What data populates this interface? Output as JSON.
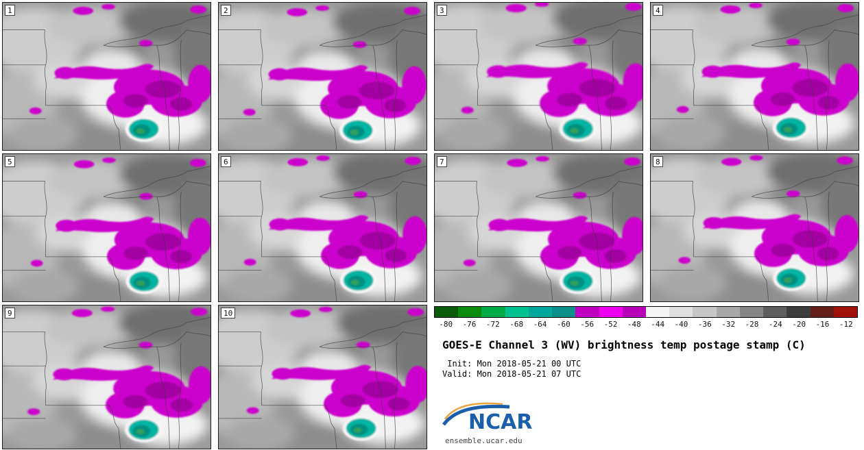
{
  "panels": [
    {
      "id": "1"
    },
    {
      "id": "2"
    },
    {
      "id": "3"
    },
    {
      "id": "4"
    },
    {
      "id": "5"
    },
    {
      "id": "6"
    },
    {
      "id": "7"
    },
    {
      "id": "8"
    },
    {
      "id": "9"
    },
    {
      "id": "10"
    }
  ],
  "colorbar": {
    "ticks": [
      "-80",
      "-76",
      "-72",
      "-68",
      "-64",
      "-60",
      "-56",
      "-52",
      "-48",
      "-44",
      "-40",
      "-36",
      "-32",
      "-28",
      "-24",
      "-20",
      "-16",
      "-12"
    ],
    "colors": [
      "#0a5c0a",
      "#0c8c0c",
      "#00aa44",
      "#00c290",
      "#00a89c",
      "#0d8f8a",
      "#c000c0",
      "#ee00ee",
      "#b800b8",
      "#f4f4f4",
      "#e0e0e0",
      "#c6c6c6",
      "#a8a8a8",
      "#868686",
      "#5e5e5e",
      "#3c3c3c",
      "#642018",
      "#a01208"
    ]
  },
  "title": "GOES-E Channel 3 (WV) brightness temp postage stamp (C)",
  "init_line": " Init: Mon 2018-05-21 00 UTC",
  "valid_line": "Valid: Mon 2018-05-21 07 UTC",
  "logo": {
    "text": "NCAR",
    "url": "ensemble.ucar.edu",
    "color": "#1b5faa",
    "accent": "#e8a33d"
  }
}
